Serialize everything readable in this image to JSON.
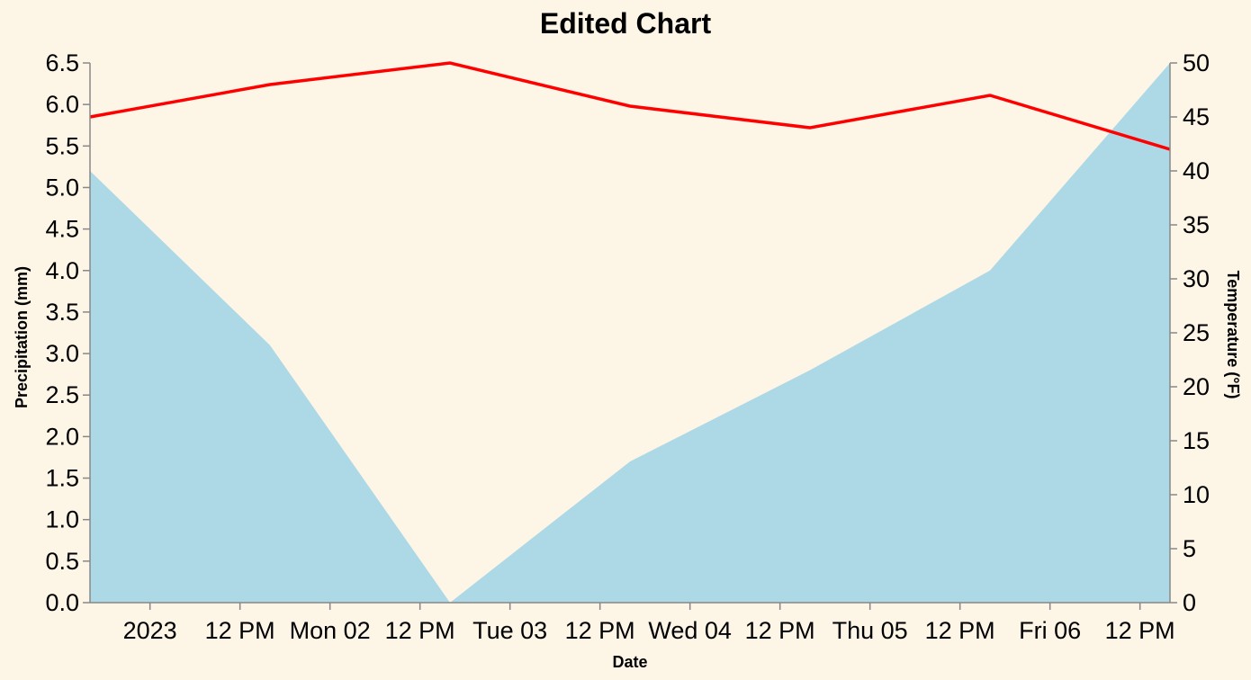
{
  "chart_data": {
    "type": "area",
    "title": "Edited Chart",
    "xlabel": "Date",
    "ylabel_left": "Precipitation (mm)",
    "ylabel_right": "Temperature (°F)",
    "x_tick_labels": [
      "2023",
      "12 PM",
      "Mon 02",
      "12 PM",
      "Tue 03",
      "12 PM",
      "Wed 04",
      "12 PM",
      "Thu 05",
      "12 PM",
      "Fri 06",
      "12 PM"
    ],
    "x_tick_dates": [
      "2023-01-01T00:00",
      "2023-01-01T12:00",
      "2023-01-02T00:00",
      "2023-01-02T12:00",
      "2023-01-03T00:00",
      "2023-01-03T12:00",
      "2023-01-04T00:00",
      "2023-01-04T12:00",
      "2023-01-05T00:00",
      "2023-01-05T12:00",
      "2023-01-06T00:00",
      "2023-01-06T12:00"
    ],
    "x_domain": [
      "2022-12-31T16:00",
      "2023-01-06T16:00"
    ],
    "x": [
      "2022-12-31T16:00",
      "2023-01-01T16:00",
      "2023-01-02T16:00",
      "2023-01-03T16:00",
      "2023-01-04T16:00",
      "2023-01-05T16:00",
      "2023-01-06T16:00"
    ],
    "series": [
      {
        "name": "Precipitation (mm)",
        "mark": "area",
        "axis": "left",
        "color": "#add8e6",
        "values": [
          5.2,
          3.1,
          0.0,
          1.7,
          2.8,
          4.0,
          6.5
        ]
      },
      {
        "name": "Temperature (°F)",
        "mark": "line",
        "axis": "right",
        "color": "#ff0000",
        "values": [
          45,
          48,
          50,
          46,
          44,
          47,
          42
        ]
      }
    ],
    "ylim_left": [
      0,
      6.5
    ],
    "ylim_right": [
      0,
      50
    ],
    "yticks_left": [
      "0.0",
      "0.5",
      "1.0",
      "1.5",
      "2.0",
      "2.5",
      "3.0",
      "3.5",
      "4.0",
      "4.5",
      "5.0",
      "5.5",
      "6.0",
      "6.5"
    ],
    "yticks_right": [
      "0",
      "5",
      "10",
      "15",
      "20",
      "25",
      "30",
      "35",
      "40",
      "45",
      "50"
    ],
    "grid": false,
    "background": "#fdf5e6"
  }
}
